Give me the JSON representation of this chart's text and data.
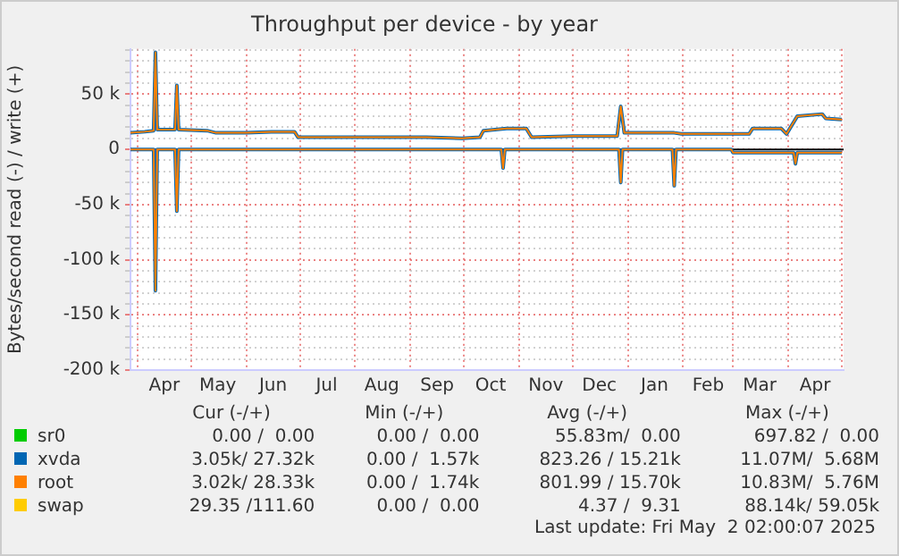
{
  "chart_data": {
    "type": "line",
    "title": "Throughput per device - by year",
    "ylabel": "Bytes/second read (-) / write (+)",
    "xlim": [
      "2024-03-28",
      "2025-05-02"
    ],
    "xticks": [
      {
        "value": "2024-04-01",
        "label": null
      },
      {
        "value": "2024-04-16",
        "label": "Apr"
      },
      {
        "value": "2024-05-01",
        "label": null
      },
      {
        "value": "2024-05-16",
        "label": "May"
      },
      {
        "value": "2024-06-01",
        "label": null
      },
      {
        "value": "2024-06-16",
        "label": "Jun"
      },
      {
        "value": "2024-07-01",
        "label": null
      },
      {
        "value": "2024-07-16",
        "label": "Jul"
      },
      {
        "value": "2024-08-01",
        "label": null
      },
      {
        "value": "2024-08-16",
        "label": "Aug"
      },
      {
        "value": "2024-09-01",
        "label": null
      },
      {
        "value": "2024-09-16",
        "label": "Sep"
      },
      {
        "value": "2024-10-01",
        "label": null
      },
      {
        "value": "2024-10-16",
        "label": "Oct"
      },
      {
        "value": "2024-11-01",
        "label": null
      },
      {
        "value": "2024-11-16",
        "label": "Nov"
      },
      {
        "value": "2024-12-01",
        "label": null
      },
      {
        "value": "2024-12-16",
        "label": "Dec"
      },
      {
        "value": "2025-01-01",
        "label": null
      },
      {
        "value": "2025-01-16",
        "label": "Jan"
      },
      {
        "value": "2025-02-01",
        "label": null
      },
      {
        "value": "2025-02-15",
        "label": "Feb"
      },
      {
        "value": "2025-03-01",
        "label": null
      },
      {
        "value": "2025-03-16",
        "label": "Mar"
      },
      {
        "value": "2025-04-01",
        "label": null
      },
      {
        "value": "2025-04-16",
        "label": "Apr"
      },
      {
        "value": "2025-05-01",
        "label": null
      }
    ],
    "ylim": [
      -200000,
      91000
    ],
    "yticks": [
      {
        "value": -200000,
        "label": "-200 k"
      },
      {
        "value": -190000,
        "label": null
      },
      {
        "value": -180000,
        "label": null
      },
      {
        "value": -170000,
        "label": null
      },
      {
        "value": -160000,
        "label": null
      },
      {
        "value": -150000,
        "label": "-150 k"
      },
      {
        "value": -140000,
        "label": null
      },
      {
        "value": -130000,
        "label": null
      },
      {
        "value": -120000,
        "label": null
      },
      {
        "value": -110000,
        "label": null
      },
      {
        "value": -100000,
        "label": "-100 k"
      },
      {
        "value": -90000,
        "label": null
      },
      {
        "value": -80000,
        "label": null
      },
      {
        "value": -70000,
        "label": null
      },
      {
        "value": -60000,
        "label": null
      },
      {
        "value": -50000,
        "label": "-50 k"
      },
      {
        "value": -40000,
        "label": null
      },
      {
        "value": -30000,
        "label": null
      },
      {
        "value": -20000,
        "label": null
      },
      {
        "value": -10000,
        "label": null
      },
      {
        "value": 0,
        "label": "0"
      },
      {
        "value": 10000,
        "label": null
      },
      {
        "value": 20000,
        "label": null
      },
      {
        "value": 30000,
        "label": null
      },
      {
        "value": 40000,
        "label": null
      },
      {
        "value": 50000,
        "label": "50 k"
      },
      {
        "value": 60000,
        "label": null
      },
      {
        "value": 70000,
        "label": null
      },
      {
        "value": 80000,
        "label": null
      },
      {
        "value": 90000,
        "label": null
      }
    ],
    "grid": true,
    "legend": "bottom",
    "series": [
      {
        "name": "sr0",
        "color": "#00cc00"
      },
      {
        "name": "xvda",
        "color": "#0066b3",
        "x": [
          "2024-03-28",
          "2024-04-05",
          "2024-04-10",
          "2024-04-11",
          "2024-04-12",
          "2024-04-22",
          "2024-04-23",
          "2024-04-24",
          "2024-05-10",
          "2024-05-15",
          "2024-06-01",
          "2024-06-15",
          "2024-06-28",
          "2024-06-30",
          "2024-07-20",
          "2024-08-15",
          "2024-09-10",
          "2024-09-30",
          "2024-10-10",
          "2024-10-12",
          "2024-10-25",
          "2024-11-05",
          "2024-11-08",
          "2024-12-01",
          "2024-12-26",
          "2024-12-28",
          "2024-12-30",
          "2025-01-27",
          "2025-01-31",
          "2025-03-10",
          "2025-03-12",
          "2025-03-28",
          "2025-03-31",
          "2025-04-06",
          "2025-04-20",
          "2025-04-22",
          "2025-05-01"
        ],
        "values": [
          15000,
          16000,
          17000,
          88000,
          18000,
          18000,
          58000,
          18000,
          17000,
          15000,
          15000,
          16000,
          16000,
          11000,
          11000,
          11000,
          11000,
          10000,
          11000,
          17000,
          19000,
          19000,
          11000,
          12000,
          12000,
          39000,
          15000,
          15000,
          14000,
          14000,
          19000,
          19000,
          14000,
          30000,
          32000,
          28000,
          27000
        ]
      },
      {
        "color": "#0066b3",
        "x": [
          "2024-03-28",
          "2024-04-10",
          "2024-04-11",
          "2024-04-12",
          "2024-04-22",
          "2024-04-23",
          "2024-04-24",
          "2024-10-22",
          "2024-10-23",
          "2024-10-24",
          "2024-12-27",
          "2024-12-28",
          "2024-12-29",
          "2025-01-26",
          "2025-01-27",
          "2025-01-28",
          "2025-02-28",
          "2025-03-01",
          "2025-04-04",
          "2025-04-05",
          "2025-04-06",
          "2025-05-01"
        ],
        "values": [
          0,
          0,
          -128000,
          0,
          0,
          -56000,
          0,
          0,
          -17000,
          0,
          0,
          -30000,
          0,
          0,
          -33000,
          0,
          0,
          -3000,
          -3000,
          -13000,
          -3000,
          -3000
        ]
      },
      {
        "name": "root",
        "color": "#ff8000",
        "x": [
          "2024-03-28",
          "2024-04-05",
          "2024-04-10",
          "2024-04-11",
          "2024-04-12",
          "2024-04-22",
          "2024-04-23",
          "2024-04-24",
          "2024-05-10",
          "2024-05-15",
          "2024-06-01",
          "2024-06-15",
          "2024-06-28",
          "2024-06-30",
          "2024-07-20",
          "2024-08-15",
          "2024-09-10",
          "2024-09-30",
          "2024-10-10",
          "2024-10-12",
          "2024-10-25",
          "2024-11-05",
          "2024-11-08",
          "2024-12-01",
          "2024-12-26",
          "2024-12-28",
          "2024-12-30",
          "2025-01-27",
          "2025-01-31",
          "2025-03-10",
          "2025-03-12",
          "2025-03-28",
          "2025-03-31",
          "2025-04-06",
          "2025-04-20",
          "2025-04-22",
          "2025-05-01"
        ],
        "values": [
          15000,
          16000,
          17000,
          88000,
          18000,
          18000,
          58000,
          18000,
          17000,
          15000,
          15000,
          16000,
          16000,
          11000,
          11000,
          11000,
          11000,
          10000,
          11000,
          17000,
          19000,
          19000,
          11000,
          12000,
          12000,
          39000,
          15000,
          15000,
          14000,
          14000,
          19000,
          19000,
          14000,
          30000,
          32000,
          28000,
          27000
        ]
      },
      {
        "color": "#ff8000",
        "x": [
          "2024-03-28",
          "2024-04-10",
          "2024-04-11",
          "2024-04-12",
          "2024-04-22",
          "2024-04-23",
          "2024-04-24",
          "2024-10-22",
          "2024-10-23",
          "2024-10-24",
          "2024-12-27",
          "2024-12-28",
          "2024-12-29",
          "2025-01-26",
          "2025-01-27",
          "2025-01-28",
          "2025-02-28",
          "2025-03-01",
          "2025-04-04",
          "2025-04-05",
          "2025-04-06",
          "2025-05-01"
        ],
        "values": [
          0,
          0,
          -128000,
          0,
          0,
          -56000,
          0,
          0,
          -17000,
          0,
          0,
          -30000,
          0,
          0,
          -33000,
          0,
          0,
          -3000,
          -3000,
          -13000,
          -3000,
          -3000
        ]
      },
      {
        "name": "swap",
        "color": "#ffcc00"
      }
    ],
    "annotations": [
      "Cur (-/+)",
      "Min (-/+)",
      "Avg (-/+)",
      "Max (-/+)",
      "0.00 /  0.00",
      "0.00 /  0.00",
      "55.83m/  0.00",
      "697.82 /  0.00",
      "3.05k/ 27.32k",
      "0.00 /  1.57k",
      "823.26 / 15.21k",
      "11.07M/  5.68M",
      "3.02k/ 28.33k",
      "0.00 /  1.74k",
      "801.99 / 15.70k",
      "10.83M/  5.76M",
      "29.35 /111.60",
      "0.00 /  0.00",
      "4.37 /  9.31",
      "88.14k/ 59.05k",
      "Last update: Fri May  2 02:00:07 2025"
    ]
  }
}
